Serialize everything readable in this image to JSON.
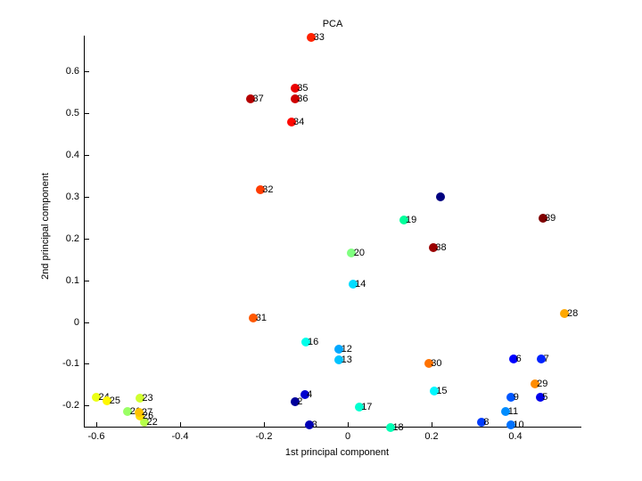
{
  "figure": {
    "background": "#ffffff",
    "text_color": "#000000",
    "axis_color": "#000000"
  },
  "chart_data": {
    "type": "scatter",
    "title": "PCA",
    "xlabel": "1st principal component",
    "ylabel": "2nd principal component",
    "xlim": [
      -0.63,
      0.557
    ],
    "ylim": [
      -0.253,
      0.685
    ],
    "grid": false,
    "legend_position": "none",
    "colormap": "jet",
    "marker": "filled-dot",
    "x_ticks": [
      -0.6,
      -0.4,
      -0.2,
      0,
      0.2,
      0.4
    ],
    "x_tick_labels": [
      "-0.6",
      "-0.4",
      "-0.2",
      "0",
      "0.2",
      "0.4"
    ],
    "y_ticks": [
      0.6,
      0.5,
      0.4,
      0.3,
      0.2,
      0.1,
      0,
      -0.1,
      -0.2
    ],
    "y_tick_labels": [
      "0.6",
      "0.5",
      "0.4",
      "0.3",
      "0.2",
      "0.1",
      "0",
      "-0.1",
      "-0.2"
    ],
    "points": [
      {
        "label": "",
        "x": 0.222,
        "y": 0.3,
        "color": "#000080"
      },
      {
        "label": "2",
        "x": -0.126,
        "y": -0.191,
        "color": "#00009B"
      },
      {
        "label": "3",
        "x": -0.091,
        "y": -0.245,
        "color": "#0000B5"
      },
      {
        "label": "4",
        "x": -0.103,
        "y": -0.174,
        "color": "#0000D0"
      },
      {
        "label": "5",
        "x": 0.459,
        "y": -0.179,
        "color": "#0000EB"
      },
      {
        "label": "6",
        "x": 0.396,
        "y": -0.088,
        "color": "#0000FF"
      },
      {
        "label": "7",
        "x": 0.462,
        "y": -0.088,
        "color": "#0022FF"
      },
      {
        "label": "8",
        "x": 0.319,
        "y": -0.24,
        "color": "#003CFF"
      },
      {
        "label": "9",
        "x": 0.39,
        "y": -0.181,
        "color": "#0057FF"
      },
      {
        "label": "10",
        "x": 0.389,
        "y": -0.247,
        "color": "#0072FF"
      },
      {
        "label": "11",
        "x": 0.377,
        "y": -0.213,
        "color": "#008DFF"
      },
      {
        "label": "12",
        "x": -0.021,
        "y": -0.066,
        "color": "#00A8FF"
      },
      {
        "label": "13",
        "x": -0.021,
        "y": -0.091,
        "color": "#00C3FF"
      },
      {
        "label": "14",
        "x": 0.012,
        "y": 0.091,
        "color": "#00DDFF"
      },
      {
        "label": "15",
        "x": 0.206,
        "y": -0.165,
        "color": "#00F8FF"
      },
      {
        "label": "16",
        "x": -0.101,
        "y": -0.048,
        "color": "#00FFEB"
      },
      {
        "label": "17",
        "x": 0.027,
        "y": -0.204,
        "color": "#00FFD0"
      },
      {
        "label": "18",
        "x": 0.102,
        "y": -0.252,
        "color": "#00FFB5"
      },
      {
        "label": "19",
        "x": 0.133,
        "y": 0.243,
        "color": "#00FF9B"
      },
      {
        "label": "20",
        "x": 0.009,
        "y": 0.165,
        "color": "#80FF80"
      },
      {
        "label": "21",
        "x": -0.525,
        "y": -0.215,
        "color": "#9AFF65"
      },
      {
        "label": "22",
        "x": -0.485,
        "y": -0.24,
        "color": "#B5FF4A"
      },
      {
        "label": "23",
        "x": -0.496,
        "y": -0.182,
        "color": "#D0FF2F"
      },
      {
        "label": "24",
        "x": -0.6,
        "y": -0.181,
        "color": "#EBFF14"
      },
      {
        "label": "25",
        "x": -0.574,
        "y": -0.188,
        "color": "#FFF800"
      },
      {
        "label": "26",
        "x": -0.495,
        "y": -0.224,
        "color": "#FFDD00"
      },
      {
        "label": "27",
        "x": -0.497,
        "y": -0.217,
        "color": "#FFC300"
      },
      {
        "label": "28",
        "x": 0.518,
        "y": 0.021,
        "color": "#FFA800"
      },
      {
        "label": "29",
        "x": 0.446,
        "y": -0.147,
        "color": "#FF8D00"
      },
      {
        "label": "30",
        "x": 0.193,
        "y": -0.098,
        "color": "#FF7200"
      },
      {
        "label": "31",
        "x": -0.225,
        "y": 0.01,
        "color": "#FF5700"
      },
      {
        "label": "32",
        "x": -0.209,
        "y": 0.316,
        "color": "#FF3C00"
      },
      {
        "label": "33",
        "x": -0.087,
        "y": 0.68,
        "color": "#FF2200"
      },
      {
        "label": "34",
        "x": -0.135,
        "y": 0.478,
        "color": "#FF0700"
      },
      {
        "label": "35",
        "x": -0.126,
        "y": 0.559,
        "color": "#EB0000"
      },
      {
        "label": "36",
        "x": -0.126,
        "y": 0.534,
        "color": "#D00000"
      },
      {
        "label": "37",
        "x": -0.232,
        "y": 0.534,
        "color": "#B50000"
      },
      {
        "label": "38",
        "x": 0.204,
        "y": 0.177,
        "color": "#9B0000"
      },
      {
        "label": "39",
        "x": 0.465,
        "y": 0.248,
        "color": "#800000"
      }
    ]
  }
}
